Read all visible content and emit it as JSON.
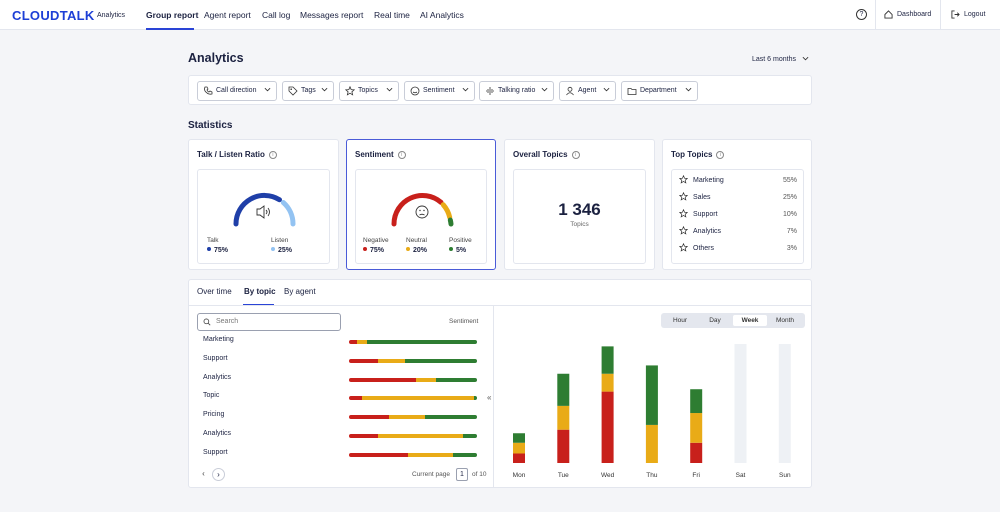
{
  "brand": {
    "logo": "CLOUDTALK",
    "section": "Analytics"
  },
  "nav": {
    "tabs": [
      {
        "label": "Group report"
      },
      {
        "label": "Agent report"
      },
      {
        "label": "Call log"
      },
      {
        "label": "Messages report"
      },
      {
        "label": "Real time"
      },
      {
        "label": "AI Analytics"
      }
    ],
    "help_icon": "?",
    "dashboard_label": "Dashboard",
    "logout_label": "Logout"
  },
  "page": {
    "title": "Analytics",
    "period": "Last 6 months"
  },
  "filters": [
    {
      "label": "Call direction",
      "icon": "phone-icon"
    },
    {
      "label": "Tags",
      "icon": "tag-icon"
    },
    {
      "label": "Topics",
      "icon": "star-icon"
    },
    {
      "label": "Sentiment",
      "icon": "smiley-icon"
    },
    {
      "label": "Talking ratio",
      "icon": "waveform-icon"
    },
    {
      "label": "Agent",
      "icon": "user-icon"
    },
    {
      "label": "Department",
      "icon": "folder-icon"
    }
  ],
  "statistics": {
    "heading": "Statistics",
    "talk_listen": {
      "title": "Talk / Listen Ratio",
      "talk_label": "Talk",
      "talk_value": "75%",
      "listen_label": "Listen",
      "listen_value": "25%",
      "talk_fraction": 0.75,
      "icon": "speaker-icon"
    },
    "sentiment": {
      "title": "Sentiment",
      "negative_label": "Negative",
      "negative_value": "75%",
      "neutral_label": "Neutral",
      "neutral_value": "20%",
      "positive_label": "Positive",
      "positive_value": "5%",
      "icon": "neutral-face-icon"
    },
    "overall_topics": {
      "title": "Overall Topics",
      "value": "1 346",
      "sub": "Topics"
    },
    "top_topics": {
      "title": "Top Topics",
      "items": [
        {
          "name": "Marketing",
          "percent": "55%"
        },
        {
          "name": "Sales",
          "percent": "25%"
        },
        {
          "name": "Support",
          "percent": "10%"
        },
        {
          "name": "Analytics",
          "percent": "7%"
        },
        {
          "name": "Others",
          "percent": "3%"
        }
      ]
    }
  },
  "breakdown": {
    "tabs": [
      "Over time",
      "By topic",
      "By agent"
    ],
    "search_placeholder": "Search",
    "sentiment_header": "Sentiment",
    "topics": [
      {
        "name": "Marketing",
        "negative": 0.06,
        "neutral": 0.08,
        "positive": 0.86
      },
      {
        "name": "Support",
        "negative": 0.23,
        "neutral": 0.21,
        "positive": 0.56
      },
      {
        "name": "Analytics",
        "negative": 0.52,
        "neutral": 0.16,
        "positive": 0.32
      },
      {
        "name": "Topic",
        "negative": 0.1,
        "neutral": 0.88,
        "positive": 0.02
      },
      {
        "name": "Pricing",
        "negative": 0.31,
        "neutral": 0.28,
        "positive": 0.41
      },
      {
        "name": "Analytics",
        "negative": 0.23,
        "neutral": 0.66,
        "positive": 0.11
      },
      {
        "name": "Support",
        "negative": 0.46,
        "neutral": 0.35,
        "positive": 0.19
      }
    ],
    "pager": {
      "prev": "‹",
      "next": "›",
      "current_label": "Current page",
      "current_page": "1",
      "of_label": "of 10"
    },
    "collapse_icon": "«",
    "granularity": [
      "Hour",
      "Day",
      "Week",
      "Month"
    ],
    "granularity_selected": "Week"
  },
  "colors": {
    "negative": "#c8201b",
    "neutral": "#e9ab17",
    "positive": "#2e7d32",
    "talk": "#1f3fa8",
    "listen": "#93c3f2",
    "accent": "#2a44d6"
  },
  "chart_data": {
    "type": "bar",
    "stacked": true,
    "categories": [
      "Mon",
      "Tue",
      "Wed",
      "Thu",
      "Fri",
      "Sat",
      "Sun"
    ],
    "series": [
      {
        "name": "Negative",
        "values": [
          8,
          28,
          60,
          0,
          17,
          0,
          0
        ]
      },
      {
        "name": "Neutral",
        "values": [
          9,
          20,
          15,
          32,
          25,
          0,
          0
        ]
      },
      {
        "name": "Positive",
        "values": [
          8,
          27,
          23,
          50,
          20,
          0,
          0
        ]
      }
    ],
    "ylim": [
      0,
      100
    ]
  }
}
